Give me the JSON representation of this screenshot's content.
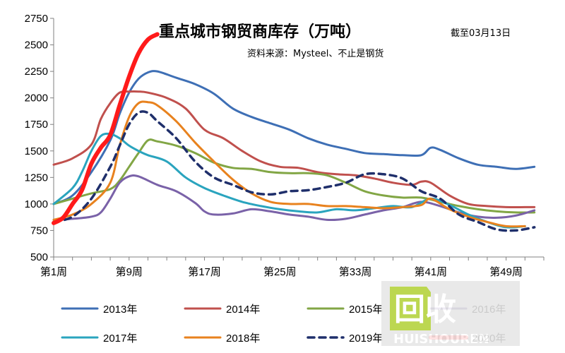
{
  "chart_data": {
    "type": "line",
    "title": "重点城市钢贸商库存（万吨）",
    "subtitle": "资料来源：Mysteel、不止是钢货",
    "date_note": "截至03月13日",
    "xlabel": "",
    "ylabel": "",
    "ylim": [
      500,
      2750
    ],
    "y_ticks": [
      "500",
      "750",
      "1000",
      "1250",
      "1500",
      "1750",
      "2000",
      "2250",
      "2500",
      "2750"
    ],
    "x_range": [
      1,
      53
    ],
    "x_ticks": [
      {
        "week": 1,
        "label": "第1周"
      },
      {
        "week": 9,
        "label": "第9周"
      },
      {
        "week": 17,
        "label": "第17周"
      },
      {
        "week": 25,
        "label": "第25周"
      },
      {
        "week": 33,
        "label": "第33周"
      },
      {
        "week": 41,
        "label": "第41周"
      },
      {
        "week": 49,
        "label": "第49周"
      }
    ],
    "legend_position": "bottom",
    "series": [
      {
        "name": "2013年",
        "color": "#3e6fb5",
        "width": 3,
        "dash": "",
        "x": [
          1,
          3,
          5,
          7,
          8,
          9,
          10,
          11,
          12,
          14,
          16,
          18,
          20,
          22,
          24,
          26,
          28,
          30,
          32,
          34,
          36,
          38,
          40,
          41,
          42,
          44,
          46,
          48,
          50,
          52
        ],
        "y": [
          1000,
          1080,
          1300,
          1600,
          1850,
          2050,
          2180,
          2240,
          2250,
          2190,
          2130,
          2040,
          1900,
          1820,
          1760,
          1700,
          1620,
          1560,
          1520,
          1480,
          1470,
          1460,
          1460,
          1530,
          1510,
          1430,
          1370,
          1350,
          1330,
          1350
        ]
      },
      {
        "name": "2014年",
        "color": "#c0504d",
        "width": 3,
        "dash": "",
        "x": [
          1,
          3,
          5,
          6,
          7,
          8,
          9,
          10,
          11,
          13,
          15,
          17,
          19,
          21,
          23,
          25,
          27,
          29,
          31,
          33,
          35,
          37,
          39,
          40,
          41,
          43,
          45,
          47,
          49,
          51,
          52
        ],
        "y": [
          1370,
          1430,
          1560,
          1800,
          1950,
          2050,
          2060,
          2060,
          2050,
          2000,
          1900,
          1700,
          1620,
          1500,
          1400,
          1350,
          1340,
          1300,
          1280,
          1270,
          1240,
          1200,
          1180,
          1210,
          1200,
          1080,
          1000,
          980,
          970,
          970,
          970
        ]
      },
      {
        "name": "2015年",
        "color": "#82a645",
        "width": 3,
        "dash": "",
        "x": [
          1,
          3,
          5,
          7,
          8,
          9,
          10,
          11,
          12,
          14,
          16,
          18,
          20,
          22,
          24,
          26,
          28,
          30,
          32,
          34,
          36,
          38,
          40,
          42,
          44,
          46,
          48,
          50,
          52
        ],
        "y": [
          1000,
          1050,
          1100,
          1140,
          1220,
          1350,
          1480,
          1600,
          1590,
          1550,
          1480,
          1390,
          1340,
          1330,
          1300,
          1290,
          1290,
          1270,
          1200,
          1120,
          1080,
          1060,
          1060,
          1020,
          980,
          950,
          930,
          920,
          920
        ]
      },
      {
        "name": "2016年",
        "color": "#7a62a8",
        "width": 3,
        "dash": "",
        "x": [
          1,
          3,
          5,
          6,
          7,
          8,
          9,
          10,
          12,
          14,
          16,
          17,
          18,
          20,
          22,
          24,
          26,
          28,
          30,
          32,
          34,
          36,
          38,
          40,
          42,
          44,
          46,
          48,
          50,
          52
        ],
        "y": [
          850,
          860,
          880,
          920,
          1050,
          1200,
          1260,
          1260,
          1180,
          1120,
          1010,
          930,
          900,
          910,
          950,
          930,
          900,
          880,
          850,
          860,
          900,
          940,
          970,
          1020,
          980,
          920,
          880,
          870,
          890,
          940
        ]
      },
      {
        "name": "2017年",
        "color": "#2aa4be",
        "width": 3,
        "dash": "",
        "x": [
          1,
          3,
          4,
          5,
          6,
          7,
          8,
          9,
          10,
          11,
          13,
          15,
          17,
          19,
          21,
          23,
          25,
          27,
          29,
          31,
          33,
          35,
          37,
          39,
          41,
          43,
          45,
          47,
          49,
          51
        ],
        "y": [
          1000,
          1150,
          1300,
          1500,
          1640,
          1660,
          1620,
          1550,
          1500,
          1460,
          1400,
          1250,
          1150,
          1080,
          1020,
          980,
          950,
          930,
          920,
          950,
          940,
          960,
          980,
          970,
          1050,
          990,
          900,
          830,
          780,
          790
        ]
      },
      {
        "name": "2018年",
        "color": "#e8821e",
        "width": 3,
        "dash": "",
        "x": [
          1,
          3,
          5,
          7,
          8,
          9,
          10,
          11,
          12,
          14,
          16,
          18,
          20,
          22,
          24,
          26,
          28,
          30,
          32,
          34,
          36,
          38,
          40,
          41,
          43,
          45,
          47,
          49,
          51
        ],
        "y": [
          850,
          900,
          1000,
          1200,
          1550,
          1820,
          1950,
          1960,
          1930,
          1780,
          1580,
          1400,
          1230,
          1100,
          1020,
          1000,
          1000,
          980,
          980,
          970,
          960,
          970,
          990,
          1050,
          950,
          880,
          830,
          790,
          790
        ]
      },
      {
        "name": "2019年",
        "color": "#1f2f6b",
        "width": 3.5,
        "dash": "9,7",
        "x": [
          1,
          3,
          5,
          7,
          8,
          9,
          10,
          11,
          12,
          14,
          16,
          18,
          20,
          22,
          24,
          26,
          28,
          30,
          32,
          34,
          36,
          38,
          40,
          42,
          44,
          46,
          48,
          50,
          52
        ],
        "y": [
          830,
          880,
          1050,
          1350,
          1550,
          1750,
          1860,
          1860,
          1780,
          1620,
          1400,
          1250,
          1180,
          1110,
          1090,
          1120,
          1130,
          1160,
          1200,
          1280,
          1280,
          1240,
          1120,
          1050,
          900,
          830,
          760,
          750,
          780
        ]
      },
      {
        "name": "2020年",
        "color": "#ff1a1a",
        "width": 6,
        "dash": "",
        "x": [
          1,
          2,
          3,
          4,
          5,
          6,
          7,
          8,
          9,
          10,
          11,
          12
        ],
        "y": [
          820,
          870,
          1000,
          1130,
          1380,
          1530,
          1650,
          1930,
          2200,
          2420,
          2550,
          2600
        ]
      }
    ]
  },
  "watermark": {
    "brand": "回收",
    "domain": "HUISHOUREN"
  }
}
